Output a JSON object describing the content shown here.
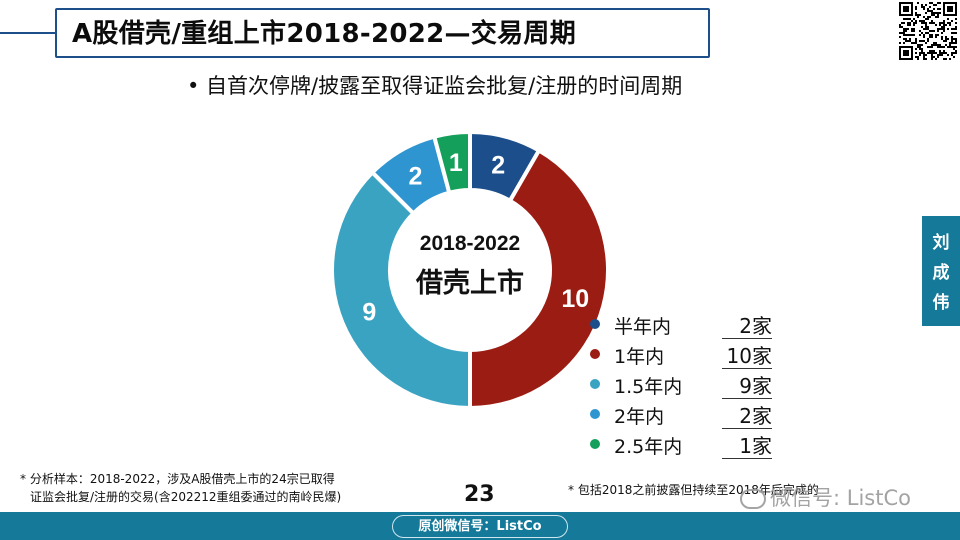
{
  "header": {
    "title": "A股借壳/重组上市2018-2022—交易周期",
    "subtitle": "• 自首次停牌/披露至取得证监会批复/注册的时间周期"
  },
  "side_badge": {
    "chars": [
      "刘",
      "成",
      "伟"
    ]
  },
  "chart_data": {
    "type": "pie",
    "donut": true,
    "center_label_line1": "2018-2022",
    "center_label_line2": "借壳上市",
    "categories": [
      "半年内",
      "1年内",
      "1.5年内",
      "2年内",
      "2.5年内"
    ],
    "values": [
      2,
      10,
      9,
      2,
      1
    ],
    "data_labels": [
      "2",
      "10",
      "9",
      "2",
      "1"
    ],
    "counts_text": [
      "2家",
      "10家",
      "9家",
      "2家",
      "1家"
    ],
    "colors": [
      "#1c4e8b",
      "#9b1c12",
      "#3aa3c2",
      "#2f95d0",
      "#14a05a"
    ],
    "start_angle_deg": 0,
    "direction": "clockwise",
    "legend_position": "right"
  },
  "footnotes": {
    "left_line1": "* 分析样本：2018-2022，涉及A股借壳上市的24宗已取得",
    "left_line2": "证监会批复/注册的交易(含202212重组委通过的南岭民爆)",
    "right": "* 包括2018之前披露但持续至2018年后完成的"
  },
  "page_number": "23",
  "watermark": "微信号: ListCo",
  "footer": {
    "label": "原创微信号：ListCo"
  },
  "icons": {
    "qr": "qr-code-icon",
    "watermark": "wechat-icon"
  }
}
